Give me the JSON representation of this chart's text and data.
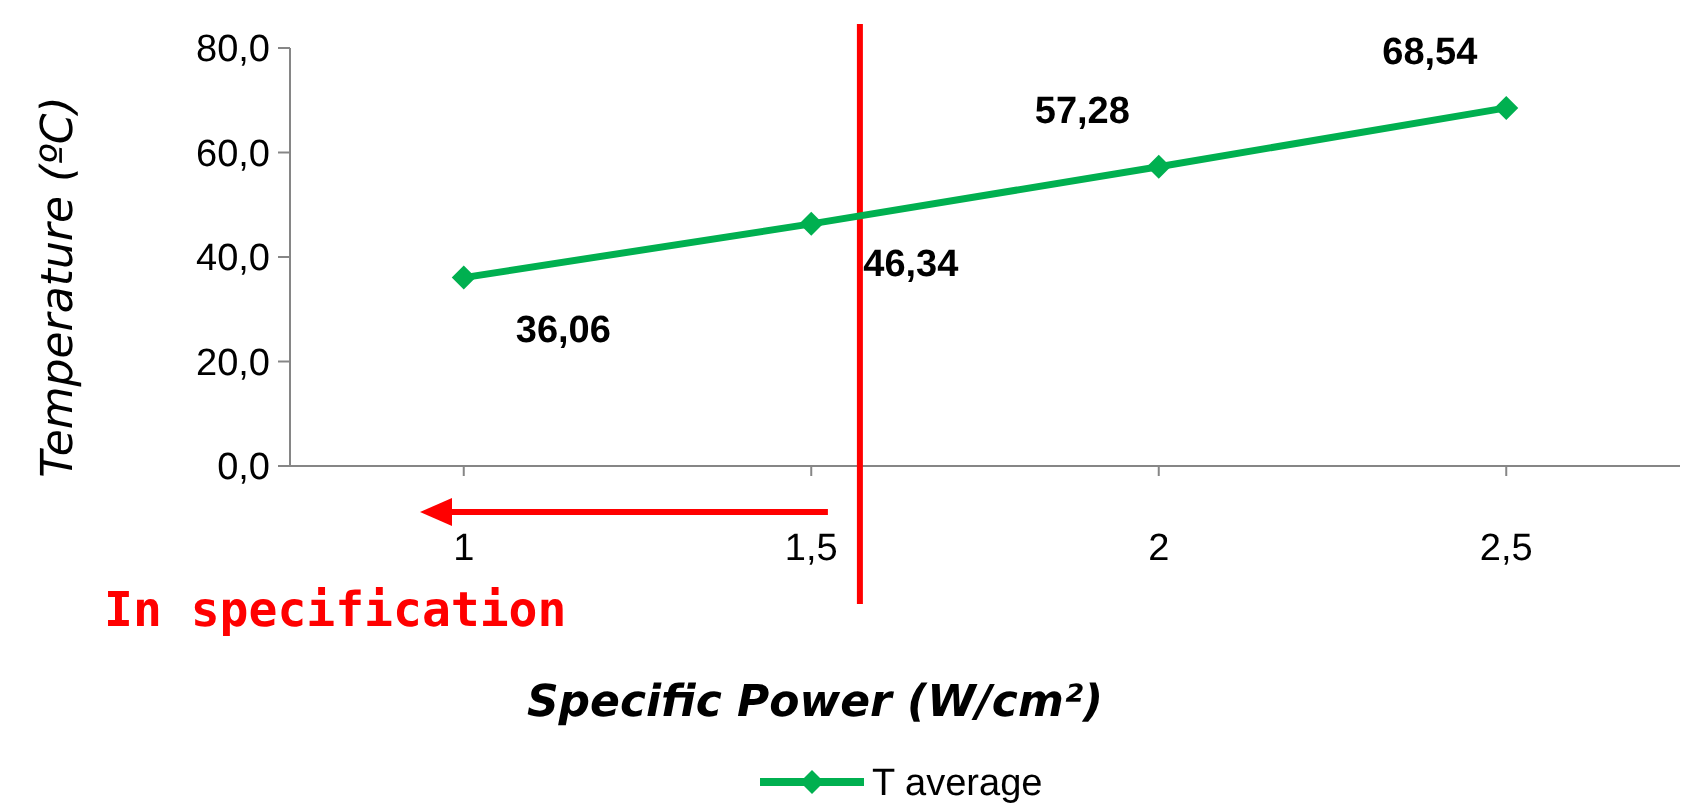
{
  "chart_data": {
    "type": "line",
    "xlabel": "Specific Power (W/cm²)",
    "ylabel": "Temperature (ºC)",
    "x": [
      1,
      1.5,
      2,
      2.5
    ],
    "series": [
      {
        "name": "T average",
        "color": "#00b050",
        "values": [
          36.06,
          46.34,
          57.28,
          68.54
        ],
        "value_labels": [
          "36,06",
          "46,34",
          "57,28",
          "68,54"
        ]
      }
    ],
    "xlim": [
      0.75,
      2.75
    ],
    "xticks": [
      1,
      {
        "value": 1.5,
        "label": "1,5"
      },
      2,
      {
        "value": 2.5,
        "label": "2,5"
      }
    ],
    "ylim": [
      0,
      80
    ],
    "yticks": [
      {
        "value": 0,
        "label": "0,0"
      },
      {
        "value": 20,
        "label": "20,0"
      },
      {
        "value": 40,
        "label": "40,0"
      },
      {
        "value": 60,
        "label": "60,0"
      },
      {
        "value": 80,
        "label": "80,0"
      }
    ],
    "ref_lines": [
      {
        "axis": "x",
        "value": 1.57,
        "color": "#ff0000"
      }
    ],
    "annotations": [
      "In specification"
    ],
    "marker": "diamond",
    "legend": "bottom",
    "grid": false
  }
}
